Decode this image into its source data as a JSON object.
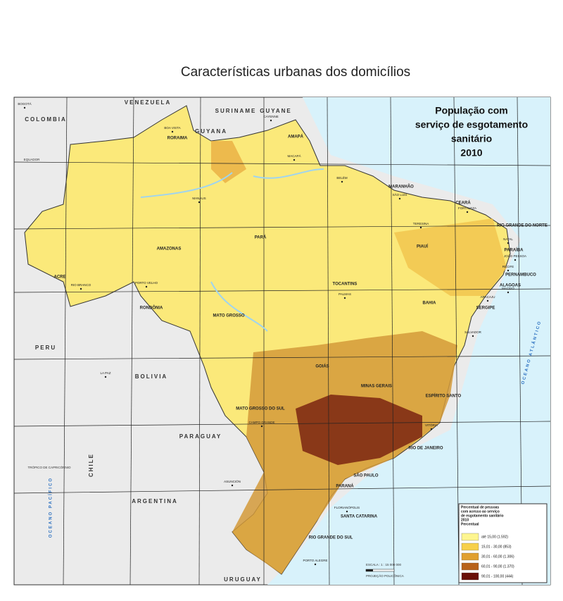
{
  "title": "Características urbanas dos domicílios",
  "map_title": [
    "População com",
    "serviço de esgotamento",
    "sanitário",
    "2010"
  ],
  "legend": {
    "title": [
      "Percentual de pessoas",
      "com acesso ao serviço",
      "de esgotamento sanitário",
      "2010",
      "Percentual"
    ],
    "items": [
      {
        "label": "até 15,00 (1.592)",
        "color": "#fdf590"
      },
      {
        "label": "15,01 - 30,00 (853)",
        "color": "#f7d04a"
      },
      {
        "label": "30,01 - 60,00 (1.306)",
        "color": "#e0a030"
      },
      {
        "label": "60,01 - 90,00 (1.370)",
        "color": "#b8621a"
      },
      {
        "label": "90,01 - 100,00 (444)",
        "color": "#6a1008"
      }
    ]
  },
  "countries": [
    "VENEZUELA",
    "COLOMBIA",
    "GUYANA",
    "SURINAME",
    "GUYANE",
    "PERU",
    "BOLIVIA",
    "PARAGUAY",
    "ARGENTINA",
    "URUGUAY",
    "CHILE"
  ],
  "states": [
    "RORAIMA",
    "AMAPÁ",
    "AMAZONAS",
    "PARÁ",
    "MARANHÃO",
    "CEARÁ",
    "RIO GRANDE DO NORTE",
    "PARAÍBA",
    "PERNAMBUCO",
    "ALAGOAS",
    "SERGIPE",
    "BAHIA",
    "PIAUÍ",
    "TOCANTINS",
    "ACRE",
    "RONDÔNIA",
    "MATO GROSSO",
    "GOIÁS",
    "MINAS GERAIS",
    "ESPÍRITO SANTO",
    "RIO DE JANEIRO",
    "SÃO PAULO",
    "PARANÁ",
    "SANTA CATARINA",
    "RIO GRANDE DO SUL",
    "MATO GROSSO DO SUL"
  ],
  "cities": [
    "BOA VISTA",
    "MACAPÁ",
    "MANAUS",
    "BELÉM",
    "SÃO LUÍS",
    "FORTALEZA",
    "TERESINA",
    "NATAL",
    "JOÃO PESSOA",
    "RECIFE",
    "MACEIÓ",
    "ARACAJU",
    "SALVADOR",
    "PALMAS",
    "PORTO VELHO",
    "RIO BRANCO",
    "CAMPO GRANDE",
    "VITÓRIA",
    "FLORIANÓPOLIS",
    "PORTO ALEGRE",
    "LA PAZ",
    "ASUNCIÓN",
    "BOGOTÁ",
    "CAYENNE"
  ],
  "oceans": [
    "OCEANO ATLÂNTICO",
    "OCEANO PACÍFICO"
  ],
  "lines": [
    "EQUADOR",
    "TRÓPICO DE CAPRICÓRNIO"
  ],
  "scale": [
    "ESCALA : 1 : 15 000 000",
    "PROJEÇÃO POLICÔNICA"
  ]
}
